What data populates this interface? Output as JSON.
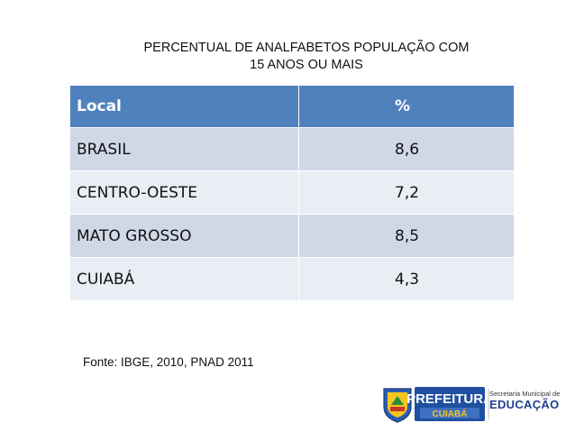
{
  "title": {
    "line1": "PERCENTUAL DE ANALFABETOS POPULAÇÃO COM",
    "line2": "15 ANOS OU MAIS"
  },
  "table": {
    "headers": [
      "Local",
      "%"
    ],
    "rows": [
      {
        "local": "BRASIL",
        "value": "8,6"
      },
      {
        "local": "CENTRO-OESTE",
        "value": "7,2"
      },
      {
        "local": "MATO GROSSO",
        "value": "8,5"
      },
      {
        "local": "CUIABÁ",
        "value": "4,3"
      }
    ]
  },
  "source": "Fonte: IBGE, 2010, PNAD 2011",
  "logo": {
    "brand": "PREFEITURA",
    "city": "CUIABÁ",
    "dept_line1": "Secretaria Municipal de",
    "dept_line2": "EDUCAÇÃO"
  },
  "colors": {
    "header": "#4f81bd",
    "row_odd": "#d0d8e8",
    "row_even": "#e9edf4"
  }
}
